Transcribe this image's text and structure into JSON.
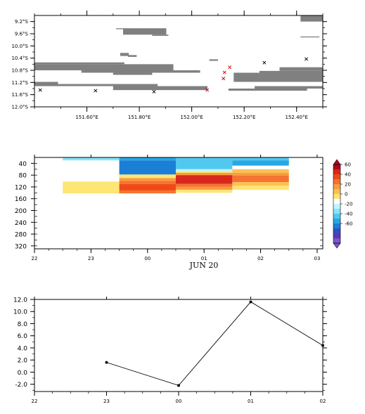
{
  "chart_data": [
    {
      "type": "map-track",
      "title": "",
      "xlim": [
        151.4,
        152.5
      ],
      "ylim": [
        -12.0,
        -9.0
      ],
      "x_ticks": [
        {
          "value": 151.6,
          "label": "151.60°E"
        },
        {
          "value": 151.8,
          "label": "151.80°E"
        },
        {
          "value": 152.0,
          "label": "152.00°E"
        },
        {
          "value": 152.2,
          "label": "152.20°E"
        },
        {
          "value": 152.4,
          "label": "152.40°E"
        }
      ],
      "y_ticks": [
        {
          "value": -9.2,
          "label": "9.2°S"
        },
        {
          "value": -9.6,
          "label": "9.6°S"
        },
        {
          "value": -10.0,
          "label": "10.0°S"
        },
        {
          "value": -10.4,
          "label": "10.4°S"
        },
        {
          "value": -10.8,
          "label": "10.8°S"
        },
        {
          "value": -11.2,
          "label": "11.2°S"
        },
        {
          "value": -11.6,
          "label": "11.6°S"
        },
        {
          "value": -12.0,
          "label": "12.0°S"
        }
      ],
      "land_color": "#808080",
      "land_bars": [
        {
          "lon0": 151.711,
          "lon1": 151.903,
          "lat0": -9.42,
          "lat1": -9.45
        },
        {
          "lon0": 151.738,
          "lon1": 151.903,
          "lat0": -9.45,
          "lat1": -9.63
        },
        {
          "lon0": 151.849,
          "lon1": 151.911,
          "lat0": -9.63,
          "lat1": -9.67
        },
        {
          "lon0": 152.415,
          "lon1": 152.5,
          "lat0": -9.0,
          "lat1": -9.2
        },
        {
          "lon0": 152.415,
          "lon1": 152.487,
          "lat0": -9.69,
          "lat1": -9.72
        },
        {
          "lon0": 151.727,
          "lon1": 151.76,
          "lat0": -10.23,
          "lat1": -10.33
        },
        {
          "lon0": 151.757,
          "lon1": 151.79,
          "lat0": -10.3,
          "lat1": -10.36
        },
        {
          "lon0": 152.067,
          "lon1": 152.1,
          "lat0": -10.44,
          "lat1": -10.49
        },
        {
          "lon0": 151.4,
          "lon1": 151.743,
          "lat0": -10.54,
          "lat1": -10.6
        },
        {
          "lon0": 151.4,
          "lon1": 151.93,
          "lat0": -10.6,
          "lat1": -10.8
        },
        {
          "lon0": 151.579,
          "lon1": 152.032,
          "lat0": -10.8,
          "lat1": -10.88
        },
        {
          "lon0": 151.7,
          "lon1": 151.849,
          "lat0": -10.88,
          "lat1": -10.95
        },
        {
          "lon0": 152.16,
          "lon1": 152.258,
          "lat0": -10.88,
          "lat1": -10.95
        },
        {
          "lon0": 152.335,
          "lon1": 152.5,
          "lat0": -10.7,
          "lat1": -10.82
        },
        {
          "lon0": 152.258,
          "lon1": 152.5,
          "lat0": -10.82,
          "lat1": -10.95
        },
        {
          "lon0": 152.16,
          "lon1": 152.5,
          "lat0": -10.95,
          "lat1": -11.18
        },
        {
          "lon0": 151.4,
          "lon1": 151.49,
          "lat0": -11.18,
          "lat1": -11.32
        },
        {
          "lon0": 151.45,
          "lon1": 151.87,
          "lat0": -11.25,
          "lat1": -11.32
        },
        {
          "lon0": 151.7,
          "lon1": 152.06,
          "lat0": -11.32,
          "lat1": -11.45
        },
        {
          "lon0": 152.24,
          "lon1": 152.5,
          "lat0": -11.32,
          "lat1": -11.4
        },
        {
          "lon0": 152.14,
          "lon1": 152.44,
          "lat0": -11.4,
          "lat1": -11.47
        }
      ],
      "markers": [
        {
          "lon": 151.422,
          "lat": -11.45,
          "color": "#000000"
        },
        {
          "lon": 151.633,
          "lat": -11.47,
          "color": "#000000"
        },
        {
          "lon": 151.856,
          "lat": -11.5,
          "color": "#000000"
        },
        {
          "lon": 152.059,
          "lat": -11.45,
          "color": "#cc0000"
        },
        {
          "lon": 152.121,
          "lat": -11.07,
          "color": "#cc0000"
        },
        {
          "lon": 152.125,
          "lat": -10.87,
          "color": "#cc0000"
        },
        {
          "lon": 152.145,
          "lat": -10.7,
          "color": "#cc0000"
        },
        {
          "lon": 152.277,
          "lat": -10.55,
          "color": "#000000"
        },
        {
          "lon": 152.437,
          "lat": -10.43,
          "color": "#000000"
        }
      ]
    },
    {
      "type": "heatmap",
      "title": "",
      "xlabel": "JUN 20",
      "ylabel": "",
      "xlim": [
        0,
        5.1
      ],
      "ylim": [
        330,
        20
      ],
      "x_ticks": [
        {
          "value": 0,
          "label": "22"
        },
        {
          "value": 1,
          "label": "23"
        },
        {
          "value": 2,
          "label": "00"
        },
        {
          "value": 3,
          "label": "01"
        },
        {
          "value": 4,
          "label": "02"
        },
        {
          "value": 5,
          "label": "03"
        }
      ],
      "y_ticks": [
        40,
        80,
        120,
        160,
        200,
        240,
        280,
        320
      ],
      "colorbar": {
        "min": -60,
        "max": 60,
        "tick_labels": [
          "60",
          "40",
          "20",
          "0",
          "-20",
          "-40",
          "-60"
        ],
        "colors": [
          "#b8001a",
          "#d8281e",
          "#ee4a18",
          "#f47430",
          "#f99b3e",
          "#fcc052",
          "#fde672",
          "#ffffff",
          "#bff5ff",
          "#88e4fa",
          "#52c8f0",
          "#25a8e4",
          "#1b7fd6",
          "#3250c4",
          "#5a3ab4",
          "#7c56c8"
        ]
      },
      "cells": [
        {
          "x0": 0.5,
          "x1": 1.5,
          "y0": 20,
          "y1": 30,
          "value": -10
        },
        {
          "x0": 0.5,
          "x1": 1.5,
          "y0": 102,
          "y1": 112,
          "value": 10
        },
        {
          "x0": 0.5,
          "x1": 1.5,
          "y0": 112,
          "y1": 142,
          "value": 15
        },
        {
          "x0": 1.5,
          "x1": 2.5,
          "y0": 20,
          "y1": 30,
          "value": -25
        },
        {
          "x0": 1.5,
          "x1": 2.5,
          "y0": 30,
          "y1": 78,
          "value": -35
        },
        {
          "x0": 1.5,
          "x1": 2.5,
          "y0": 78,
          "y1": 90,
          "value": 10
        },
        {
          "x0": 1.5,
          "x1": 2.5,
          "y0": 90,
          "y1": 100,
          "value": 25
        },
        {
          "x0": 1.5,
          "x1": 2.5,
          "y0": 100,
          "y1": 110,
          "value": 32
        },
        {
          "x0": 1.5,
          "x1": 2.5,
          "y0": 110,
          "y1": 132,
          "value": 40
        },
        {
          "x0": 1.5,
          "x1": 2.5,
          "y0": 132,
          "y1": 142,
          "value": 32
        },
        {
          "x0": 2.5,
          "x1": 3.5,
          "y0": 20,
          "y1": 60,
          "value": -15
        },
        {
          "x0": 2.5,
          "x1": 3.5,
          "y0": 60,
          "y1": 66,
          "value": -5
        },
        {
          "x0": 2.5,
          "x1": 3.5,
          "y0": 66,
          "y1": 72,
          "value": 10
        },
        {
          "x0": 2.5,
          "x1": 3.5,
          "y0": 72,
          "y1": 80,
          "value": 30
        },
        {
          "x0": 2.5,
          "x1": 3.5,
          "y0": 80,
          "y1": 110,
          "value": 46
        },
        {
          "x0": 2.5,
          "x1": 3.5,
          "y0": 110,
          "y1": 120,
          "value": 36
        },
        {
          "x0": 2.5,
          "x1": 3.5,
          "y0": 120,
          "y1": 130,
          "value": 25
        },
        {
          "x0": 2.5,
          "x1": 3.5,
          "y0": 130,
          "y1": 140,
          "value": 15
        },
        {
          "x0": 3.5,
          "x1": 4.5,
          "y0": 20,
          "y1": 30,
          "value": -15
        },
        {
          "x0": 3.5,
          "x1": 4.5,
          "y0": 30,
          "y1": 48,
          "value": -25
        },
        {
          "x0": 3.5,
          "x1": 4.5,
          "y0": 48,
          "y1": 60,
          "value": 5
        },
        {
          "x0": 3.5,
          "x1": 4.5,
          "y0": 60,
          "y1": 72,
          "value": 18
        },
        {
          "x0": 3.5,
          "x1": 4.5,
          "y0": 72,
          "y1": 82,
          "value": 25
        },
        {
          "x0": 3.5,
          "x1": 4.5,
          "y0": 82,
          "y1": 104,
          "value": 32
        },
        {
          "x0": 3.5,
          "x1": 4.5,
          "y0": 104,
          "y1": 116,
          "value": 22
        },
        {
          "x0": 3.5,
          "x1": 4.5,
          "y0": 116,
          "y1": 130,
          "value": 12
        }
      ]
    },
    {
      "type": "line",
      "title": "",
      "xlabel": "",
      "ylabel": "",
      "xlim": [
        0,
        4
      ],
      "ylim": [
        -3.2,
        12.0
      ],
      "x_ticks": [
        {
          "value": 0,
          "label": "22"
        },
        {
          "value": 1,
          "label": "23"
        },
        {
          "value": 2,
          "label": "00"
        },
        {
          "value": 3,
          "label": "01"
        },
        {
          "value": 4,
          "label": "02"
        }
      ],
      "y_ticks": [
        "12.0",
        "10.0",
        "8.0",
        "6.0",
        "4.0",
        "2.0",
        "0.0",
        "-2.0"
      ],
      "series": [
        {
          "x": [
            1,
            2,
            3,
            4
          ],
          "y": [
            1.6,
            -2.2,
            11.6,
            4.4
          ]
        }
      ]
    }
  ]
}
